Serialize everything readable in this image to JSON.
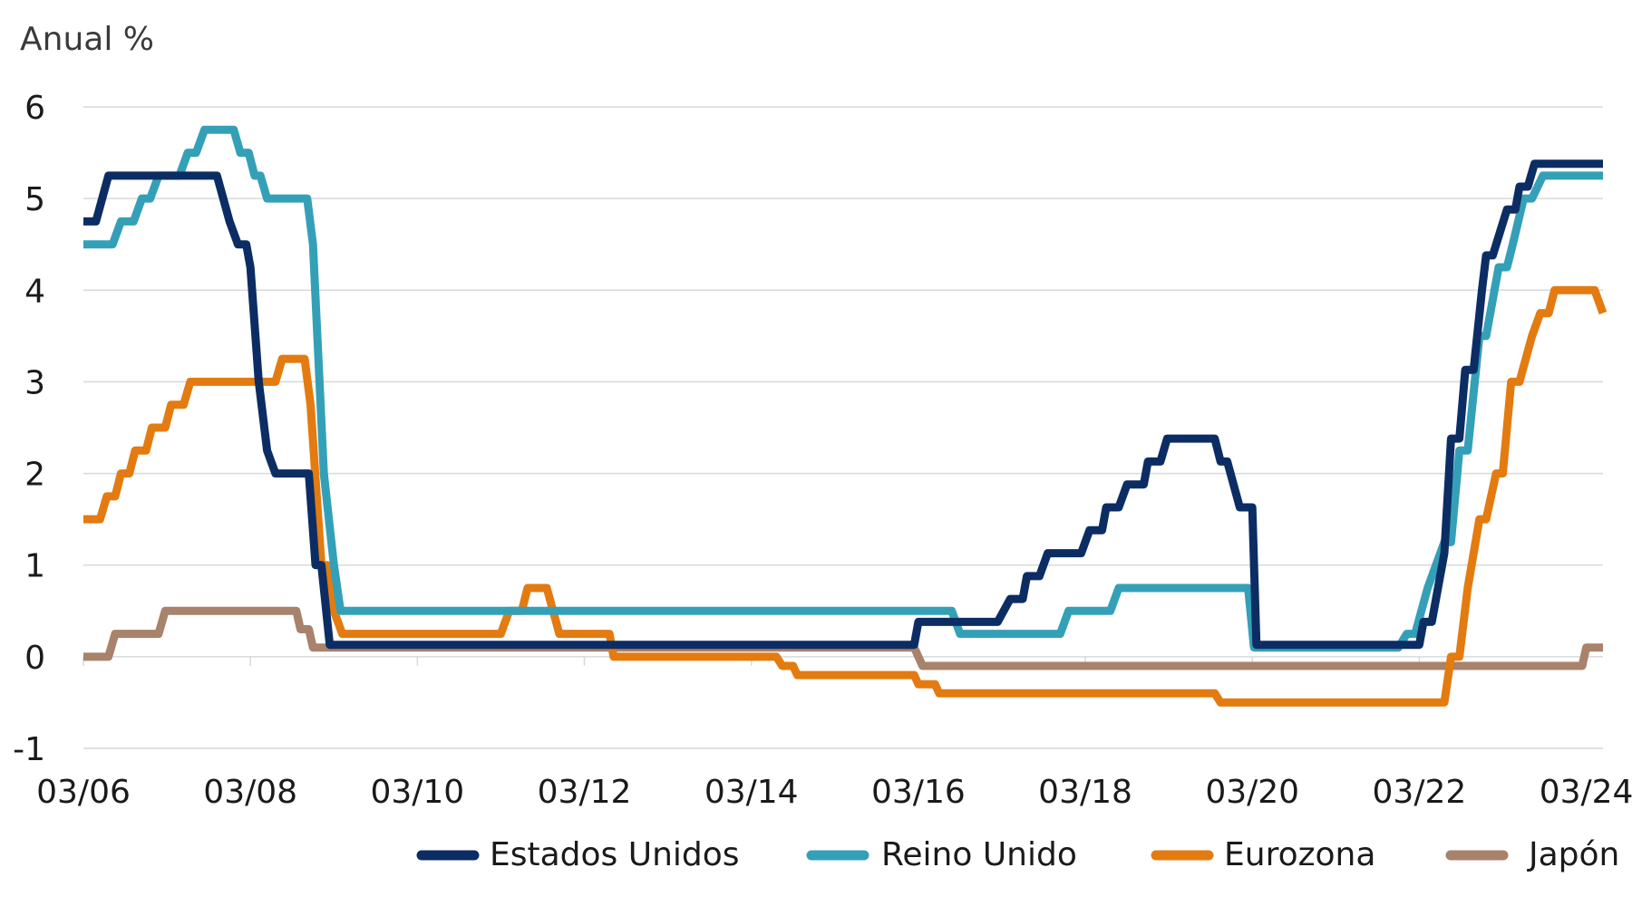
{
  "chart_data": {
    "type": "line",
    "ylabel": "Anual %",
    "ylim": [
      -1,
      6
    ],
    "yticks": [
      "-1",
      "0",
      "1",
      "2",
      "3",
      "4",
      "5",
      "6"
    ],
    "xlim": [
      2006.0,
      2024.2
    ],
    "xticks": [
      {
        "x": 2006.0,
        "label": "03/06"
      },
      {
        "x": 2008.0,
        "label": "03/08"
      },
      {
        "x": 2010.0,
        "label": "03/10"
      },
      {
        "x": 2012.0,
        "label": "03/12"
      },
      {
        "x": 2014.0,
        "label": "03/14"
      },
      {
        "x": 2016.0,
        "label": "03/16"
      },
      {
        "x": 2018.0,
        "label": "03/18"
      },
      {
        "x": 2020.0,
        "label": "03/20"
      },
      {
        "x": 2022.0,
        "label": "03/22"
      },
      {
        "x": 2024.0,
        "label": "03/24"
      }
    ],
    "grid": true,
    "legend": "bottom",
    "series": [
      {
        "name": "Estados Unidos",
        "color": "#0c2d64",
        "points": [
          [
            2006.0,
            4.75
          ],
          [
            2006.15,
            4.75
          ],
          [
            2006.3,
            5.25
          ],
          [
            2007.6,
            5.25
          ],
          [
            2007.75,
            4.75
          ],
          [
            2007.85,
            4.5
          ],
          [
            2007.95,
            4.5
          ],
          [
            2008.0,
            4.25
          ],
          [
            2008.1,
            3.0
          ],
          [
            2008.2,
            2.25
          ],
          [
            2008.3,
            2.0
          ],
          [
            2008.7,
            2.0
          ],
          [
            2008.78,
            1.0
          ],
          [
            2008.85,
            1.0
          ],
          [
            2008.95,
            0.13
          ],
          [
            2015.95,
            0.13
          ],
          [
            2016.0,
            0.38
          ],
          [
            2016.6,
            0.38
          ],
          [
            2016.95,
            0.38
          ],
          [
            2017.1,
            0.63
          ],
          [
            2017.25,
            0.63
          ],
          [
            2017.3,
            0.88
          ],
          [
            2017.45,
            0.88
          ],
          [
            2017.55,
            1.13
          ],
          [
            2017.95,
            1.13
          ],
          [
            2018.05,
            1.38
          ],
          [
            2018.2,
            1.38
          ],
          [
            2018.25,
            1.63
          ],
          [
            2018.4,
            1.63
          ],
          [
            2018.5,
            1.88
          ],
          [
            2018.7,
            1.88
          ],
          [
            2018.75,
            2.13
          ],
          [
            2018.9,
            2.13
          ],
          [
            2018.98,
            2.38
          ],
          [
            2019.55,
            2.38
          ],
          [
            2019.62,
            2.13
          ],
          [
            2019.7,
            2.13
          ],
          [
            2019.85,
            1.63
          ],
          [
            2019.95,
            1.63
          ],
          [
            2020.0,
            1.63
          ],
          [
            2020.05,
            0.13
          ],
          [
            2022.0,
            0.13
          ],
          [
            2022.05,
            0.38
          ],
          [
            2022.15,
            0.38
          ],
          [
            2022.3,
            1.13
          ],
          [
            2022.38,
            2.38
          ],
          [
            2022.48,
            2.38
          ],
          [
            2022.55,
            3.13
          ],
          [
            2022.65,
            3.13
          ],
          [
            2022.75,
            4.0
          ],
          [
            2022.8,
            4.38
          ],
          [
            2022.88,
            4.38
          ],
          [
            2023.05,
            4.88
          ],
          [
            2023.15,
            4.88
          ],
          [
            2023.2,
            5.13
          ],
          [
            2023.3,
            5.13
          ],
          [
            2023.38,
            5.38
          ],
          [
            2024.2,
            5.38
          ]
        ]
      },
      {
        "name": "Reino Unido",
        "color": "#34a0b8",
        "points": [
          [
            2006.0,
            4.5
          ],
          [
            2006.35,
            4.5
          ],
          [
            2006.45,
            4.75
          ],
          [
            2006.6,
            4.75
          ],
          [
            2006.7,
            5.0
          ],
          [
            2006.8,
            5.0
          ],
          [
            2006.9,
            5.25
          ],
          [
            2007.15,
            5.25
          ],
          [
            2007.25,
            5.5
          ],
          [
            2007.35,
            5.5
          ],
          [
            2007.45,
            5.75
          ],
          [
            2007.8,
            5.75
          ],
          [
            2007.88,
            5.5
          ],
          [
            2007.98,
            5.5
          ],
          [
            2008.05,
            5.25
          ],
          [
            2008.12,
            5.25
          ],
          [
            2008.2,
            5.0
          ],
          [
            2008.68,
            5.0
          ],
          [
            2008.75,
            4.5
          ],
          [
            2008.88,
            2.0
          ],
          [
            2009.0,
            1.0
          ],
          [
            2009.08,
            0.5
          ],
          [
            2016.4,
            0.5
          ],
          [
            2016.5,
            0.25
          ],
          [
            2017.7,
            0.25
          ],
          [
            2017.8,
            0.5
          ],
          [
            2018.3,
            0.5
          ],
          [
            2018.4,
            0.75
          ],
          [
            2019.95,
            0.75
          ],
          [
            2020.02,
            0.1
          ],
          [
            2021.75,
            0.1
          ],
          [
            2021.85,
            0.25
          ],
          [
            2021.95,
            0.25
          ],
          [
            2022.1,
            0.75
          ],
          [
            2022.2,
            1.0
          ],
          [
            2022.3,
            1.25
          ],
          [
            2022.38,
            1.25
          ],
          [
            2022.48,
            2.25
          ],
          [
            2022.58,
            2.25
          ],
          [
            2022.72,
            3.5
          ],
          [
            2022.8,
            3.5
          ],
          [
            2022.95,
            4.25
          ],
          [
            2023.05,
            4.25
          ],
          [
            2023.12,
            4.5
          ],
          [
            2023.25,
            5.0
          ],
          [
            2023.35,
            5.0
          ],
          [
            2023.48,
            5.25
          ],
          [
            2024.2,
            5.25
          ]
        ]
      },
      {
        "name": "Eurozona",
        "color": "#e37b11",
        "points": [
          [
            2006.0,
            1.5
          ],
          [
            2006.2,
            1.5
          ],
          [
            2006.28,
            1.75
          ],
          [
            2006.38,
            1.75
          ],
          [
            2006.45,
            2.0
          ],
          [
            2006.55,
            2.0
          ],
          [
            2006.62,
            2.25
          ],
          [
            2006.75,
            2.25
          ],
          [
            2006.82,
            2.5
          ],
          [
            2006.98,
            2.5
          ],
          [
            2007.05,
            2.75
          ],
          [
            2007.2,
            2.75
          ],
          [
            2007.28,
            3.0
          ],
          [
            2008.3,
            3.0
          ],
          [
            2008.38,
            3.25
          ],
          [
            2008.65,
            3.25
          ],
          [
            2008.72,
            2.75
          ],
          [
            2008.85,
            1.0
          ],
          [
            2008.92,
            1.0
          ],
          [
            2009.0,
            0.5
          ],
          [
            2009.1,
            0.25
          ],
          [
            2011.0,
            0.25
          ],
          [
            2011.1,
            0.5
          ],
          [
            2011.25,
            0.5
          ],
          [
            2011.32,
            0.75
          ],
          [
            2011.55,
            0.75
          ],
          [
            2011.7,
            0.25
          ],
          [
            2012.3,
            0.25
          ],
          [
            2012.35,
            0.0
          ],
          [
            2014.3,
            0.0
          ],
          [
            2014.37,
            -0.1
          ],
          [
            2014.5,
            -0.1
          ],
          [
            2014.55,
            -0.2
          ],
          [
            2015.95,
            -0.2
          ],
          [
            2016.0,
            -0.3
          ],
          [
            2016.2,
            -0.3
          ],
          [
            2016.25,
            -0.4
          ],
          [
            2019.55,
            -0.4
          ],
          [
            2019.62,
            -0.5
          ],
          [
            2022.3,
            -0.5
          ],
          [
            2022.38,
            0.0
          ],
          [
            2022.48,
            0.0
          ],
          [
            2022.58,
            0.75
          ],
          [
            2022.72,
            1.5
          ],
          [
            2022.8,
            1.5
          ],
          [
            2022.92,
            2.0
          ],
          [
            2023.0,
            2.0
          ],
          [
            2023.1,
            3.0
          ],
          [
            2023.2,
            3.0
          ],
          [
            2023.35,
            3.5
          ],
          [
            2023.45,
            3.75
          ],
          [
            2023.55,
            3.75
          ],
          [
            2023.62,
            4.0
          ],
          [
            2024.1,
            4.0
          ],
          [
            2024.2,
            3.75
          ]
        ]
      },
      {
        "name": "Japón",
        "color": "#a8826a",
        "points": [
          [
            2006.0,
            0.0
          ],
          [
            2006.3,
            0.0
          ],
          [
            2006.38,
            0.25
          ],
          [
            2006.9,
            0.25
          ],
          [
            2006.98,
            0.5
          ],
          [
            2008.55,
            0.5
          ],
          [
            2008.6,
            0.3
          ],
          [
            2008.7,
            0.3
          ],
          [
            2008.75,
            0.1
          ],
          [
            2015.95,
            0.1
          ],
          [
            2016.05,
            -0.1
          ],
          [
            2023.95,
            -0.1
          ],
          [
            2024.0,
            0.1
          ],
          [
            2024.2,
            0.1
          ]
        ]
      }
    ]
  }
}
